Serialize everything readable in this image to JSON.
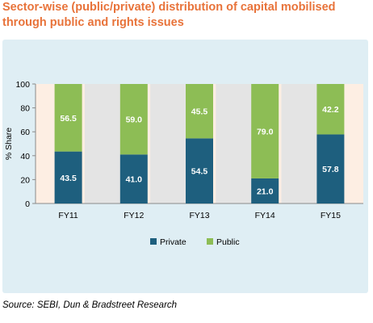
{
  "title": "Sector-wise (public/private) distribution of capital mobilised through public and rights issues",
  "source": "Source: SEBI, Dun & Bradstreet Research",
  "colors": {
    "private": "#1e5f7e",
    "public": "#8dbd55",
    "title": "#e8733a",
    "panel": "#dfeef4",
    "band_light": "#fdeee3",
    "band_dark": "#e4e4e4"
  },
  "chart_data": {
    "type": "bar",
    "stacked": true,
    "categories": [
      "FY11",
      "FY12",
      "FY13",
      "FY14",
      "FY15"
    ],
    "series": [
      {
        "name": "Private",
        "values": [
          43.5,
          41.0,
          54.5,
          21.0,
          57.8
        ]
      },
      {
        "name": "Public",
        "values": [
          56.5,
          59.0,
          45.5,
          79.0,
          42.2
        ]
      }
    ],
    "ylabel": "% Share",
    "ylim": [
      0,
      100
    ],
    "yticks": [
      0,
      20,
      40,
      60,
      80,
      100
    ],
    "legend_position": "bottom",
    "grid": false
  }
}
